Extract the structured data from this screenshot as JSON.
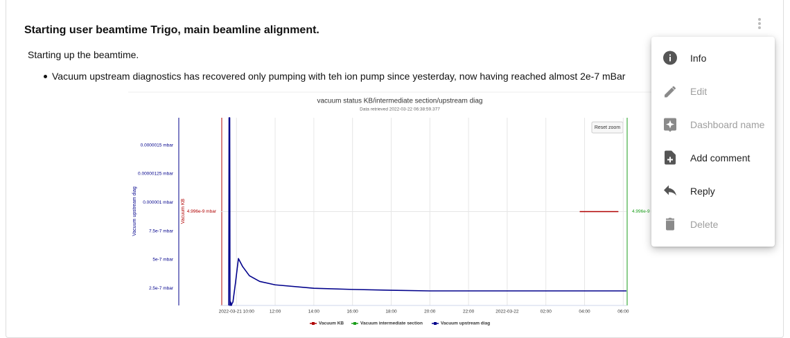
{
  "post": {
    "title": "Starting user beamtime Trigo, main beamline alignment.",
    "paragraph": "Starting up the beamtime.",
    "bullets": [
      "Vacuum upstream diagnostics has recovered only pumping with teh ion pump since yesterday, now having reached almost 2e-7 mBar"
    ]
  },
  "chart_data": {
    "type": "line",
    "title": "vacuum status KB/intermediate section/upstream diag",
    "subtitle": "Data retrieved 2022-03-22 06:38:59.377",
    "button": "Reset zoom",
    "xlim": [
      "2022-03-21 09:10",
      "2022-03-22 06:10"
    ],
    "xticks": [
      "2022-03-21 10:00",
      {
        "value": "2022-03-21 12:00",
        "label": "12:00"
      },
      {
        "value": "2022-03-21 14:00",
        "label": "14:00"
      },
      {
        "value": "2022-03-21 16:00",
        "label": "16:00"
      },
      {
        "value": "2022-03-21 18:00",
        "label": "18:00"
      },
      {
        "value": "2022-03-21 20:00",
        "label": "20:00"
      },
      {
        "value": "2022-03-21 22:00",
        "label": "22:00"
      },
      {
        "value": "2022-03-22 00:00",
        "label": "2022-03-22"
      },
      {
        "value": "2022-03-22 02:00",
        "label": "02:00"
      },
      {
        "value": "2022-03-22 04:00",
        "label": "04:00"
      },
      {
        "value": "2022-03-22 06:00",
        "label": "06:00"
      }
    ],
    "xgrid": true,
    "ylabel": "Vacuum upstream diag",
    "ylim": [
      1e-07,
      1.74e-06
    ],
    "yticks": [
      {
        "value": 2.5e-07,
        "label": "2.5e-7 mbar"
      },
      {
        "value": 5e-07,
        "label": "5e-7 mbar"
      },
      {
        "value": 7.5e-07,
        "label": "7.5e-7 mbar"
      },
      {
        "value": 1e-06,
        "label": "0.000001 mbar"
      },
      {
        "value": 1.25e-06,
        "label": "0.00000125 mbar"
      },
      {
        "value": 1.5e-06,
        "label": "0.0000015 mbar"
      }
    ],
    "y2label": "Vacuum KB",
    "y2lim": [
      4.992e-09,
      5e-09
    ],
    "y2ticks": [
      {
        "value": 4.996e-09,
        "label": "4.996e-9 mbar"
      }
    ],
    "y2grid": true,
    "y3lim": [
      4.992e-09,
      5e-09
    ],
    "y3ticks": [
      {
        "value": 4.996e-09,
        "label": "4.996e-9 mbar"
      }
    ],
    "series": [
      {
        "name": "Vacuum KB",
        "color": "#b00000",
        "axis": "y2",
        "x": [
          "2022-03-22 03:45",
          "2022-03-22 05:45"
        ],
        "values": [
          4.996e-09,
          4.996e-09
        ]
      },
      {
        "name": "Vacuum intermediate section",
        "color": "#1a9e1a",
        "axis": "y3",
        "x": [],
        "values": []
      },
      {
        "name": "Vacuum upstream diag",
        "color": "#00008b",
        "axis": "y",
        "x": [
          "2022-03-21 09:36",
          "2022-03-21 09:37",
          "2022-03-21 09:39",
          "2022-03-21 09:40",
          "2022-03-21 09:42",
          "2022-03-21 09:44",
          "2022-03-21 09:46",
          "2022-03-21 09:49",
          "2022-03-21 09:57",
          "2022-03-21 10:06",
          "2022-03-21 10:19",
          "2022-03-21 10:40",
          "2022-03-21 11:12",
          "2022-03-21 12:00",
          "2022-03-21 14:00",
          "2022-03-21 16:00",
          "2022-03-21 18:00",
          "2022-03-21 20:00",
          "2022-03-22 06:10"
        ],
        "values": [
          1e-07,
          1.74e-06,
          1.74e-06,
          1e-07,
          1.3e-07,
          1e-07,
          1.15e-07,
          1.3e-07,
          3e-07,
          5.1e-07,
          4.4e-07,
          3.6e-07,
          3.1e-07,
          2.8e-07,
          2.5e-07,
          2.4e-07,
          2.33e-07,
          2.27e-07,
          2.27e-07
        ]
      }
    ]
  },
  "menu": {
    "items": [
      {
        "label": "Info",
        "icon": "info",
        "disabled": false
      },
      {
        "label": "Edit",
        "icon": "edit",
        "disabled": true
      },
      {
        "label": "Dashboard name",
        "icon": "badge",
        "disabled": true
      },
      {
        "label": "Add comment",
        "icon": "note",
        "disabled": false
      },
      {
        "label": "Reply",
        "icon": "reply",
        "disabled": false
      },
      {
        "label": "Delete",
        "icon": "delete",
        "disabled": true
      }
    ]
  }
}
